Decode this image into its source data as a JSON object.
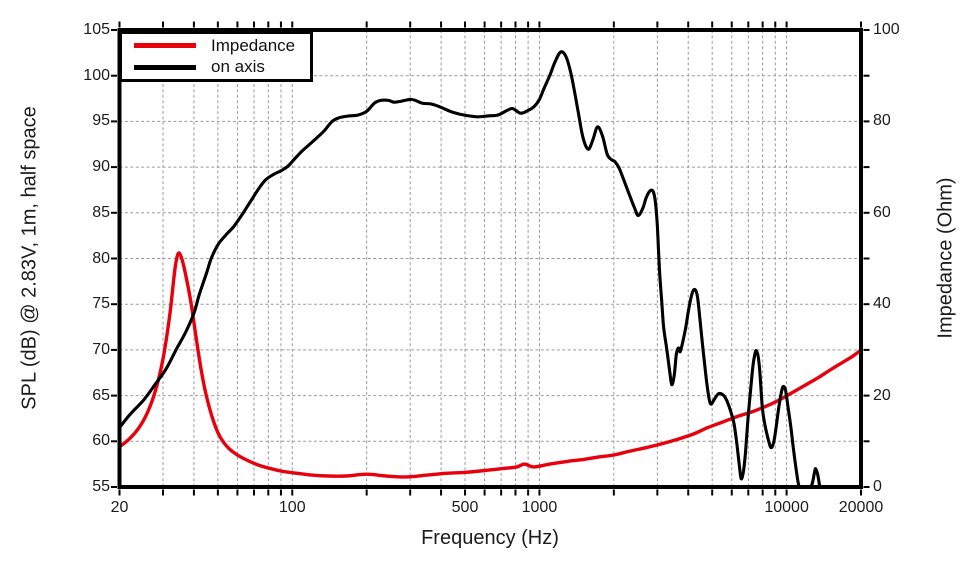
{
  "chart_data": {
    "type": "line",
    "title": "",
    "xlabel": "Frequency (Hz)",
    "ylabel_left": "SPL (dB) @ 2.83V, 1m, half space",
    "ylabel_right": "Impedance (Ohm)",
    "x_scale": "log",
    "x_range": [
      20,
      20000
    ],
    "y_left_range": [
      55,
      105
    ],
    "y_right_range": [
      0,
      100
    ],
    "grid_on": true,
    "x_tick_labels": [
      {
        "value": 20,
        "label": "20"
      },
      {
        "value": 100,
        "label": "100"
      },
      {
        "value": 500,
        "label": "500"
      },
      {
        "value": 1000,
        "label": "1000"
      },
      {
        "value": 10000,
        "label": "10000"
      },
      {
        "value": 20000,
        "label": "20000"
      }
    ],
    "x_minor_ticks": [
      20,
      30,
      40,
      50,
      60,
      70,
      80,
      90,
      100,
      200,
      300,
      400,
      500,
      600,
      700,
      800,
      900,
      1000,
      2000,
      3000,
      4000,
      5000,
      6000,
      7000,
      8000,
      9000,
      10000,
      20000
    ],
    "x_gridlines": [
      30,
      40,
      50,
      60,
      70,
      80,
      90,
      100,
      200,
      300,
      400,
      500,
      600,
      700,
      800,
      900,
      1000,
      2000,
      3000,
      4000,
      5000,
      6000,
      7000,
      8000,
      9000,
      10000
    ],
    "y_left_ticks": [
      55,
      60,
      65,
      70,
      75,
      80,
      85,
      90,
      95,
      100,
      105
    ],
    "y_left_gridlines": [
      60,
      65,
      70,
      75,
      80,
      85,
      90,
      95,
      100
    ],
    "y_right_ticks": [
      0,
      20,
      40,
      60,
      80,
      100
    ],
    "y_right_minor_ticks": [
      0,
      10,
      20,
      30,
      40,
      50,
      60,
      70,
      80,
      90,
      100
    ],
    "legend": {
      "position": "top-left",
      "entries": [
        {
          "label": "Impedance",
          "color": "#e8000d"
        },
        {
          "label": "on axis",
          "color": "#000000"
        }
      ]
    },
    "series": [
      {
        "name": "Impedance",
        "axis": "right",
        "unit": "Ohm",
        "color": "#e8000d",
        "points": [
          [
            20,
            8.8
          ],
          [
            22,
            10.6
          ],
          [
            24,
            13.0
          ],
          [
            26,
            16.4
          ],
          [
            28,
            21.2
          ],
          [
            30,
            28.0
          ],
          [
            32,
            38.0
          ],
          [
            33.5,
            47.6
          ],
          [
            34.5,
            51.0
          ],
          [
            35.5,
            50.4
          ],
          [
            37,
            46.6
          ],
          [
            39,
            40.0
          ],
          [
            41,
            32.0
          ],
          [
            43,
            25.0
          ],
          [
            45,
            19.8
          ],
          [
            48,
            14.4
          ],
          [
            51,
            11.0
          ],
          [
            55,
            8.6
          ],
          [
            60,
            7.0
          ],
          [
            66,
            5.8
          ],
          [
            73,
            4.8
          ],
          [
            82,
            4.0
          ],
          [
            92,
            3.4
          ],
          [
            105,
            3.0
          ],
          [
            120,
            2.6
          ],
          [
            140,
            2.4
          ],
          [
            165,
            2.4
          ],
          [
            200,
            2.8
          ],
          [
            240,
            2.4
          ],
          [
            290,
            2.2
          ],
          [
            350,
            2.6
          ],
          [
            420,
            3.0
          ],
          [
            500,
            3.2
          ],
          [
            600,
            3.6
          ],
          [
            700,
            4.0
          ],
          [
            810,
            4.4
          ],
          [
            870,
            5.0
          ],
          [
            950,
            4.4
          ],
          [
            1100,
            5.0
          ],
          [
            1300,
            5.6
          ],
          [
            1500,
            6.0
          ],
          [
            1750,
            6.6
          ],
          [
            2000,
            7.0
          ],
          [
            2300,
            7.8
          ],
          [
            2700,
            8.6
          ],
          [
            3100,
            9.4
          ],
          [
            3600,
            10.4
          ],
          [
            4200,
            11.6
          ],
          [
            4800,
            13.0
          ],
          [
            5500,
            14.2
          ],
          [
            6300,
            15.4
          ],
          [
            7200,
            16.4
          ],
          [
            8200,
            17.6
          ],
          [
            9300,
            19.0
          ],
          [
            10500,
            20.6
          ],
          [
            12000,
            22.4
          ],
          [
            13500,
            24.0
          ],
          [
            15000,
            25.6
          ],
          [
            17000,
            27.4
          ],
          [
            18500,
            28.6
          ],
          [
            20000,
            30.0
          ]
        ]
      },
      {
        "name": "on axis",
        "axis": "left",
        "unit": "dB",
        "color": "#000000",
        "points": [
          [
            20,
            61.5
          ],
          [
            22,
            62.9
          ],
          [
            25,
            64.5
          ],
          [
            28,
            66.3
          ],
          [
            31,
            68.0
          ],
          [
            34,
            70.1
          ],
          [
            37,
            71.9
          ],
          [
            40,
            74.0
          ],
          [
            42,
            76.0
          ],
          [
            45,
            78.4
          ],
          [
            47,
            80.0
          ],
          [
            50,
            81.5
          ],
          [
            54,
            82.6
          ],
          [
            58,
            83.5
          ],
          [
            63,
            84.9
          ],
          [
            68,
            86.3
          ],
          [
            73,
            87.6
          ],
          [
            78,
            88.6
          ],
          [
            84,
            89.2
          ],
          [
            90,
            89.6
          ],
          [
            96,
            90.1
          ],
          [
            103,
            91.0
          ],
          [
            110,
            91.8
          ],
          [
            120,
            92.7
          ],
          [
            128,
            93.4
          ],
          [
            135,
            94.0
          ],
          [
            145,
            95.0
          ],
          [
            155,
            95.4
          ],
          [
            170,
            95.6
          ],
          [
            185,
            95.7
          ],
          [
            200,
            96.1
          ],
          [
            215,
            97.0
          ],
          [
            228,
            97.3
          ],
          [
            245,
            97.3
          ],
          [
            258,
            97.1
          ],
          [
            275,
            97.2
          ],
          [
            305,
            97.4
          ],
          [
            335,
            97.0
          ],
          [
            365,
            96.9
          ],
          [
            395,
            96.6
          ],
          [
            435,
            96.1
          ],
          [
            475,
            95.8
          ],
          [
            520,
            95.6
          ],
          [
            565,
            95.5
          ],
          [
            620,
            95.6
          ],
          [
            680,
            95.7
          ],
          [
            740,
            96.2
          ],
          [
            780,
            96.4
          ],
          [
            840,
            95.9
          ],
          [
            900,
            96.2
          ],
          [
            950,
            96.6
          ],
          [
            1000,
            97.4
          ],
          [
            1040,
            98.5
          ],
          [
            1100,
            100.0
          ],
          [
            1160,
            101.6
          ],
          [
            1220,
            102.6
          ],
          [
            1280,
            102.1
          ],
          [
            1340,
            100.3
          ],
          [
            1390,
            98.1
          ],
          [
            1440,
            95.8
          ],
          [
            1490,
            93.6
          ],
          [
            1540,
            92.3
          ],
          [
            1590,
            92.0
          ],
          [
            1650,
            93.1
          ],
          [
            1720,
            94.4
          ],
          [
            1800,
            93.4
          ],
          [
            1880,
            91.4
          ],
          [
            1960,
            90.8
          ],
          [
            2020,
            90.6
          ],
          [
            2100,
            89.9
          ],
          [
            2200,
            88.5
          ],
          [
            2310,
            87.0
          ],
          [
            2420,
            85.6
          ],
          [
            2510,
            84.7
          ],
          [
            2620,
            85.5
          ],
          [
            2700,
            86.6
          ],
          [
            2800,
            87.4
          ],
          [
            2890,
            87.3
          ],
          [
            2950,
            86.0
          ],
          [
            3000,
            83.5
          ],
          [
            3060,
            78.7
          ],
          [
            3120,
            75.5
          ],
          [
            3180,
            72.5
          ],
          [
            3270,
            70.2
          ],
          [
            3360,
            67.8
          ],
          [
            3430,
            66.2
          ],
          [
            3510,
            67.2
          ],
          [
            3580,
            69.5
          ],
          [
            3650,
            70.2
          ],
          [
            3710,
            69.8
          ],
          [
            3810,
            71.0
          ],
          [
            3910,
            72.5
          ],
          [
            4020,
            74.5
          ],
          [
            4150,
            76.2
          ],
          [
            4260,
            76.6
          ],
          [
            4360,
            75.8
          ],
          [
            4460,
            73.4
          ],
          [
            4560,
            70.8
          ],
          [
            4670,
            68.2
          ],
          [
            4790,
            65.7
          ],
          [
            4920,
            64.1
          ],
          [
            5100,
            64.6
          ],
          [
            5300,
            65.2
          ],
          [
            5520,
            65.1
          ],
          [
            5720,
            64.5
          ],
          [
            5920,
            63.4
          ],
          [
            6120,
            62.0
          ],
          [
            6300,
            59.6
          ],
          [
            6450,
            57.2
          ],
          [
            6550,
            55.9
          ],
          [
            6680,
            56.6
          ],
          [
            6800,
            58.4
          ],
          [
            6900,
            60.7
          ],
          [
            7010,
            63.1
          ],
          [
            7150,
            65.6
          ],
          [
            7300,
            68.1
          ],
          [
            7450,
            69.6
          ],
          [
            7550,
            69.9
          ],
          [
            7680,
            69.2
          ],
          [
            7800,
            67.5
          ],
          [
            7980,
            63.6
          ],
          [
            8200,
            61.6
          ],
          [
            8450,
            60.1
          ],
          [
            8650,
            59.3
          ],
          [
            8870,
            59.9
          ],
          [
            9080,
            61.6
          ],
          [
            9330,
            64.0
          ],
          [
            9550,
            65.5
          ],
          [
            9700,
            66.0
          ],
          [
            9900,
            65.6
          ],
          [
            10100,
            64.0
          ],
          [
            10400,
            61.6
          ],
          [
            10650,
            59.2
          ],
          [
            10900,
            57.2
          ],
          [
            11150,
            55.4
          ],
          [
            11400,
            55.0
          ],
          [
            12400,
            55.0
          ],
          [
            12700,
            55.4
          ],
          [
            12950,
            56.5
          ],
          [
            13100,
            57.0
          ],
          [
            13350,
            56.4
          ],
          [
            13600,
            55.2
          ],
          [
            13800,
            54.8
          ]
        ]
      }
    ]
  },
  "colors": {
    "background": "#ffffff",
    "frame": "#000000",
    "grid": "#9b9b9b",
    "text": "#1c1c1c",
    "impedance": "#e8000d",
    "on_axis": "#000000"
  }
}
